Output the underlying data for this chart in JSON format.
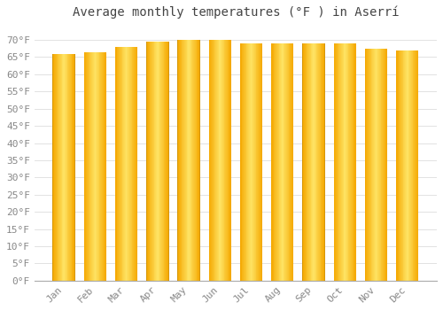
{
  "title": "Average monthly temperatures (°F ) in Aserrí",
  "months": [
    "Jan",
    "Feb",
    "Mar",
    "Apr",
    "May",
    "Jun",
    "Jul",
    "Aug",
    "Sep",
    "Oct",
    "Nov",
    "Dec"
  ],
  "values": [
    66.0,
    66.5,
    68.0,
    69.5,
    70.0,
    70.0,
    69.0,
    69.0,
    69.0,
    69.0,
    67.5,
    67.0
  ],
  "ylim": [
    0,
    74
  ],
  "ytick_step": 5,
  "bar_color_center": "#FFD966",
  "bar_color_edge": "#F5A800",
  "bar_edge_color": "#B8860B",
  "background_color": "#FFFFFF",
  "grid_color": "#DDDDDD",
  "text_color": "#888888",
  "title_color": "#444444",
  "title_fontsize": 10,
  "tick_fontsize": 8,
  "bar_width": 0.72
}
